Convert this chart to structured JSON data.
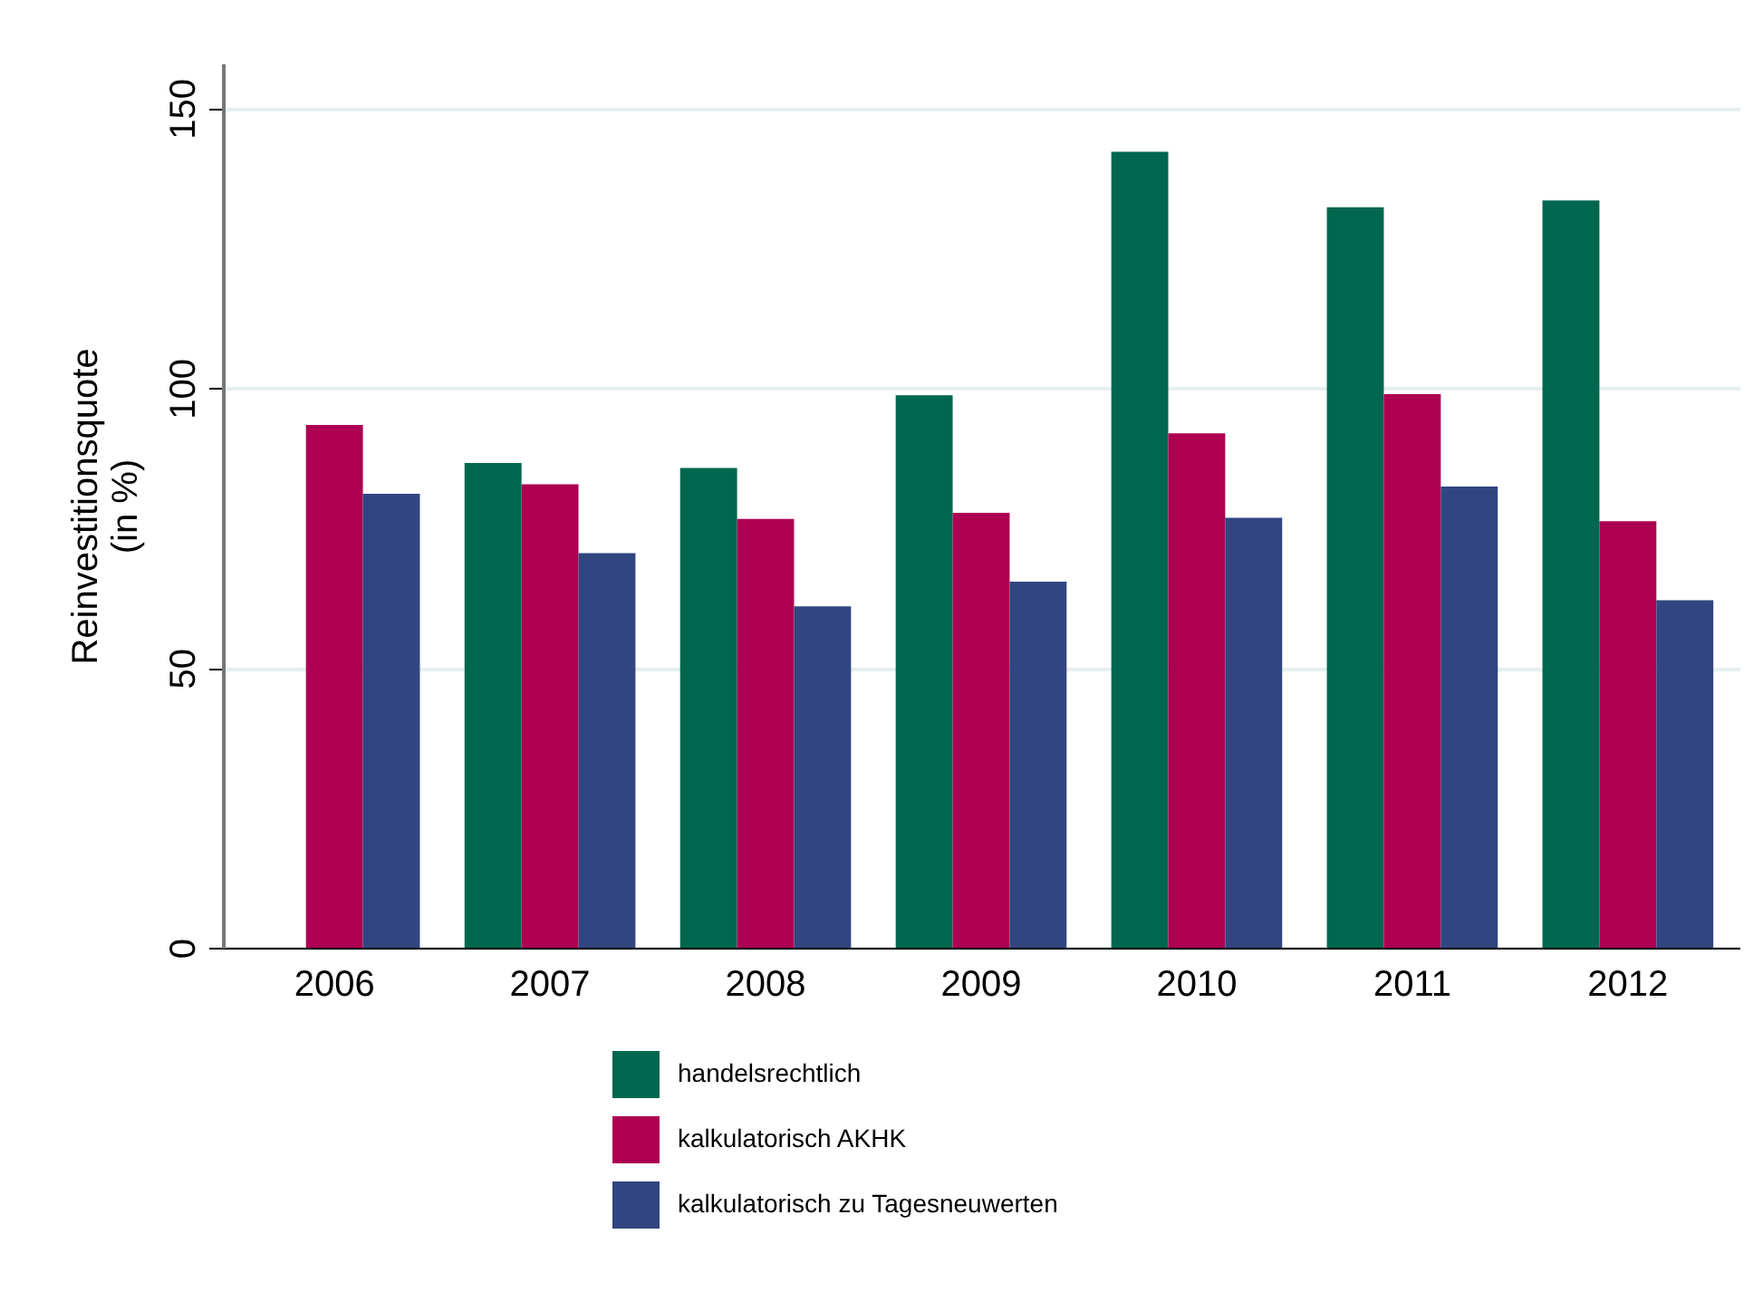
{
  "chart_data": {
    "type": "bar",
    "ylabel": "Reinvestitionsquote\n(in %)",
    "categories": [
      "2006",
      "2007",
      "2008",
      "2009",
      "2010",
      "2011",
      "2012"
    ],
    "series": [
      {
        "name": "handelsrechtlich",
        "color": "#00674f",
        "values": [
          null,
          86.6,
          85.7,
          98.7,
          142.2,
          132.3,
          133.5
        ]
      },
      {
        "name": "kalkulatorisch AKHK",
        "color": "#ad0052",
        "values": [
          93.4,
          82.8,
          76.6,
          77.7,
          91.9,
          98.9,
          76.2
        ]
      },
      {
        "name": "kalkulatorisch zu Tagesneuwerten",
        "color": "#314580",
        "values": [
          81.1,
          70.5,
          61.0,
          65.4,
          76.8,
          82.4,
          62.1
        ]
      }
    ],
    "ylim": [
      0,
      158
    ],
    "yticks": [
      0,
      50,
      100,
      150
    ],
    "grid": "y",
    "legend": "bottom"
  }
}
